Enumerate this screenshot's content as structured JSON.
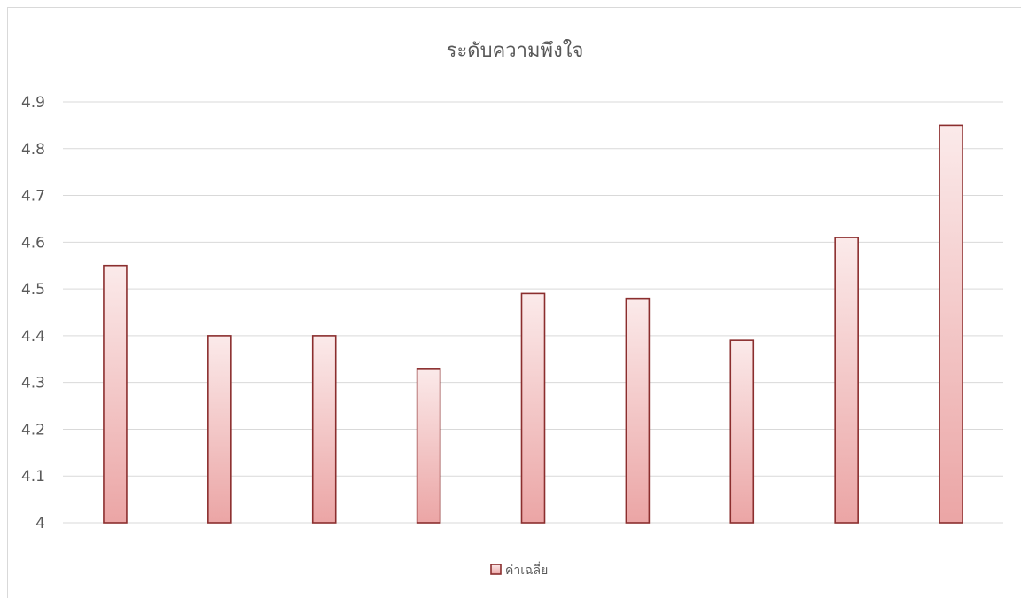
{
  "chart_data": {
    "type": "bar",
    "title": "ระดับความพึงใจ",
    "xlabel": "",
    "ylabel": "",
    "ylim": [
      4,
      4.9
    ],
    "yticks": [
      4,
      4.1,
      4.2,
      4.3,
      4.4,
      4.5,
      4.6,
      4.7,
      4.8,
      4.9
    ],
    "ytick_labels": [
      "4",
      "4.1",
      "4.2",
      "4.3",
      "4.4",
      "4.5",
      "4.6",
      "4.7",
      "4.8",
      "4.9"
    ],
    "grid": true,
    "legend_position": "bottom",
    "categories": [
      "",
      "",
      "",
      "",
      "",
      "",
      "",
      "",
      ""
    ],
    "series": [
      {
        "name": "ค่าเฉลี่ย",
        "values": [
          4.55,
          4.4,
          4.4,
          4.33,
          4.49,
          4.48,
          4.39,
          4.61,
          4.85
        ]
      }
    ],
    "colors": {
      "bar_fill_top": "#fbeaea",
      "bar_fill_bottom": "#eba5a5",
      "bar_stroke": "#8b2e2e",
      "grid": "#d9d9d9",
      "text": "#595959"
    }
  }
}
